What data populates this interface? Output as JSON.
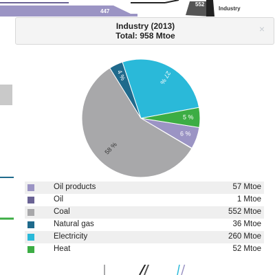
{
  "background": {
    "flow_value": "447",
    "node_value": "552",
    "node_label": "Industry"
  },
  "popup": {
    "close_icon": "close-icon",
    "close_glyph": "×"
  },
  "colors": {
    "Oil products": "#9b94c4",
    "Oil": "#6a6394",
    "Coal": "#a8a8aa",
    "Natural gas": "#1f6a8c",
    "Electricity": "#2ab9d9",
    "Heat": "#3cad44"
  },
  "chart_data": {
    "type": "pie",
    "title": "Industry (2013)",
    "subtitle": "Total: 958 Mtoe",
    "unit": "Mtoe",
    "slices": [
      {
        "label": "Oil products",
        "value": 57,
        "display": "57 Mtoe",
        "pct_label": "6 %"
      },
      {
        "label": "Oil",
        "value": 1,
        "display": "1 Mtoe",
        "pct_label": ""
      },
      {
        "label": "Coal",
        "value": 552,
        "display": "552 Mtoe",
        "pct_label": "58 %"
      },
      {
        "label": "Natural gas",
        "value": 36,
        "display": "36 Mtoe",
        "pct_label": "4 %"
      },
      {
        "label": "Electricity",
        "value": 260,
        "display": "260 Mtoe",
        "pct_label": "27 %"
      },
      {
        "label": "Heat",
        "value": 52,
        "display": "52 Mtoe",
        "pct_label": "5 %"
      }
    ],
    "legend_placement": "bottom"
  }
}
